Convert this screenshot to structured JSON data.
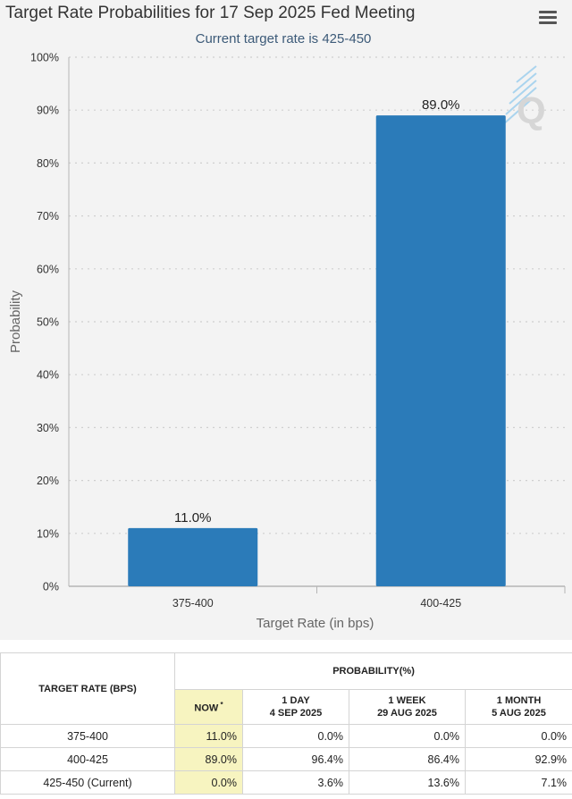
{
  "chart_data": {
    "type": "bar",
    "title": "Target Rate Probabilities for 17 Sep 2025 Fed Meeting",
    "subtitle": "Current target rate is 425-450",
    "xlabel": "Target Rate (in bps)",
    "ylabel": "Probability",
    "categories": [
      "375-400",
      "400-425"
    ],
    "values": [
      11.0,
      89.0
    ],
    "data_labels": [
      "11.0%",
      "89.0%"
    ],
    "ylim": [
      0,
      100
    ],
    "yticks": [
      "0%",
      "10%",
      "20%",
      "30%",
      "40%",
      "50%",
      "60%",
      "70%",
      "80%",
      "90%",
      "100%"
    ],
    "grid": true,
    "bar_color": "#2b7bb9"
  },
  "menu": {
    "icon": "hamburger-menu-icon"
  },
  "table": {
    "rate_header": "TARGET RATE (BPS)",
    "prob_header": "PROBABILITY(%)",
    "columns": [
      {
        "line1": "NOW",
        "line2": "",
        "marker": "*"
      },
      {
        "line1": "1 DAY",
        "line2": "4 SEP 2025",
        "marker": ""
      },
      {
        "line1": "1 WEEK",
        "line2": "29 AUG 2025",
        "marker": ""
      },
      {
        "line1": "1 MONTH",
        "line2": "5 AUG 2025",
        "marker": ""
      }
    ],
    "rows": [
      {
        "rate": "375-400",
        "cells": [
          "11.0%",
          "0.0%",
          "0.0%",
          "0.0%"
        ]
      },
      {
        "rate": "400-425",
        "cells": [
          "89.0%",
          "96.4%",
          "86.4%",
          "92.9%"
        ]
      },
      {
        "rate": "425-450 (Current)",
        "cells": [
          "0.0%",
          "3.6%",
          "13.6%",
          "7.1%"
        ]
      }
    ],
    "now_highlight_color": "#f7f4c0"
  }
}
